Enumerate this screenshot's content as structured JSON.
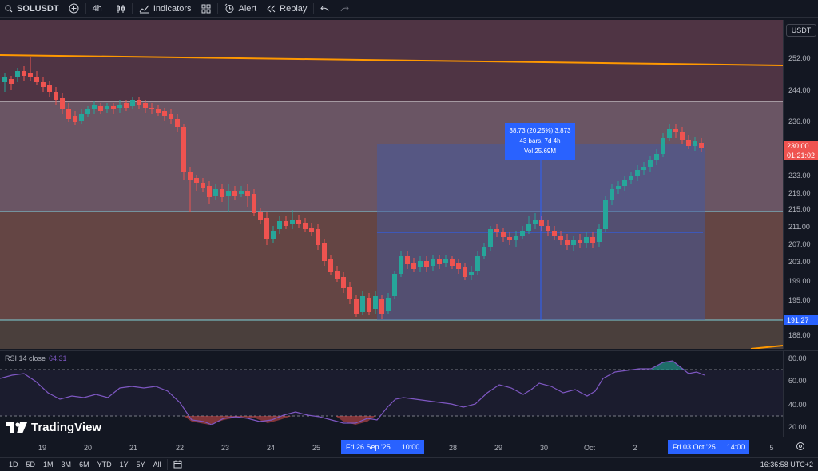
{
  "toolbar": {
    "symbol": "SOLUSDT",
    "interval": "4h",
    "indicators_label": "Indicators",
    "alert_label": "Alert",
    "replay_label": "Replay"
  },
  "chart": {
    "currency": "USDT",
    "price_ticks": [
      "252.00",
      "244.00",
      "236.00",
      "230.00",
      "223.00",
      "219.00",
      "215.00",
      "211.00",
      "207.00",
      "203.00",
      "199.00",
      "195.00",
      "191.27",
      "188.00"
    ],
    "last_price": "230.00",
    "countdown": "01:21:02",
    "low_marker": "191.27",
    "measure": {
      "line1": "38.73 (20.25%) 3,873",
      "line2": "43 bars, 7d 4h",
      "line3": "Vol 25.69M"
    },
    "colors": {
      "up": "#26a69a",
      "down": "#ef5350",
      "accent": "#2962ff",
      "trendline": "#ff9800"
    }
  },
  "rsi": {
    "title": "RSI 14 close",
    "value": "64.31",
    "ticks": [
      "80.00",
      "60.00",
      "40.00",
      "20.00"
    ]
  },
  "time_axis": {
    "ticks": [
      "19",
      "20",
      "21",
      "22",
      "23",
      "24",
      "25",
      "28",
      "29",
      "30",
      "Oct",
      "2",
      "5"
    ],
    "start_label_date": "Fri 26 Sep '25",
    "start_label_time": "10:00",
    "end_label_date": "Fri 03 Oct '25",
    "end_label_time": "14:00"
  },
  "bottom": {
    "ranges": [
      "1D",
      "5D",
      "1M",
      "3M",
      "6M",
      "YTD",
      "1Y",
      "5Y",
      "All"
    ],
    "clock": "16:36:58 UTC+2"
  },
  "logo_text": "TradingView"
}
